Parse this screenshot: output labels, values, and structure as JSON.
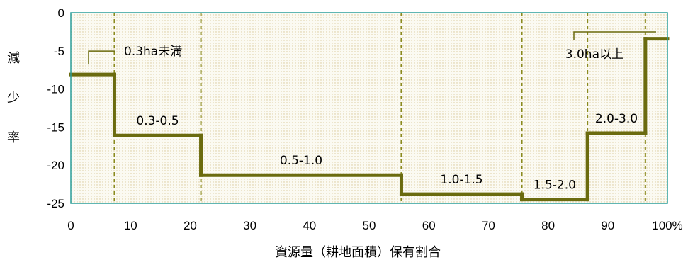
{
  "chart_data": {
    "type": "line",
    "title": "",
    "xlabel": "資源量（耕地面積）保有割合",
    "ylabel": "減少率",
    "xlim": [
      0,
      100
    ],
    "ylim": [
      -25,
      0
    ],
    "x_ticks": [
      "0",
      "10",
      "20",
      "30",
      "40",
      "50",
      "60",
      "70",
      "80",
      "90",
      "100%"
    ],
    "y_ticks": [
      "0",
      "-5",
      "-10",
      "-15",
      "-20",
      "-25"
    ],
    "colors": {
      "line": "#6b6b0e",
      "divider": "#8a8a1e",
      "frame": "#2a9d9a",
      "dots": "#d8c896",
      "fill": "#fbfaf2"
    },
    "segments": [
      {
        "label": "0.3ha未満",
        "x_start": 0,
        "x_end": 7.3,
        "value": -8.1
      },
      {
        "label": "0.3-0.5",
        "x_start": 7.3,
        "x_end": 21.8,
        "value": -16.1
      },
      {
        "label": "0.5-1.0",
        "x_start": 21.8,
        "x_end": 55.4,
        "value": -21.3
      },
      {
        "label": "1.0-1.5",
        "x_start": 55.4,
        "x_end": 75.6,
        "value": -23.8
      },
      {
        "label": "1.5-2.0",
        "x_start": 75.6,
        "x_end": 86.6,
        "value": -24.5
      },
      {
        "label": "2.0-3.0",
        "x_start": 86.6,
        "x_end": 96.3,
        "value": -15.8
      },
      {
        "label": "3.0ha以上",
        "x_start": 96.3,
        "x_end": 100,
        "value": -3.4
      }
    ]
  }
}
